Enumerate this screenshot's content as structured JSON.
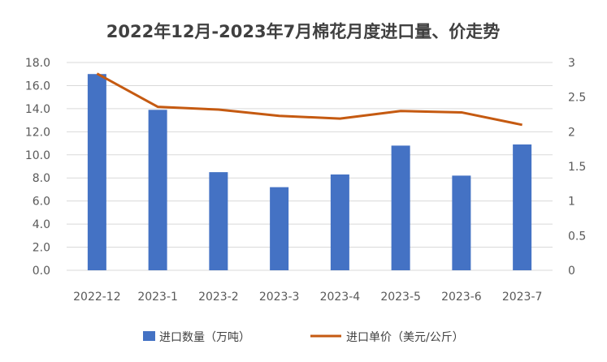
{
  "chart_data": {
    "type": "bar",
    "title": "2022年12月-2023年7月棉花月度进口量、价走势",
    "categories": [
      "2022-12",
      "2023-1",
      "2023-2",
      "2023-3",
      "2023-4",
      "2023-5",
      "2023-6",
      "2023-7"
    ],
    "series": [
      {
        "name": "进口数量（万吨）",
        "type": "bar",
        "axis": "left",
        "color": "#4472c4",
        "values": [
          17.0,
          13.9,
          8.5,
          7.2,
          8.3,
          10.8,
          8.2,
          10.9
        ]
      },
      {
        "name": "进口单价（美元/公斤）",
        "type": "line",
        "axis": "right",
        "color": "#c55a11",
        "values": [
          2.84,
          2.36,
          2.32,
          2.23,
          2.19,
          2.3,
          2.28,
          2.1
        ]
      }
    ],
    "y_left": {
      "min": 0,
      "max": 18,
      "step": 2,
      "tick_labels": [
        "0.0",
        "2.0",
        "4.0",
        "6.0",
        "8.0",
        "10.0",
        "12.0",
        "14.0",
        "16.0",
        "18.0"
      ]
    },
    "y_right": {
      "min": 0,
      "max": 3,
      "step": 0.5,
      "tick_labels": [
        "0",
        "0.5",
        "1",
        "1.5",
        "2",
        "2.5",
        "3"
      ]
    },
    "grid": true,
    "legend_position": "bottom"
  }
}
